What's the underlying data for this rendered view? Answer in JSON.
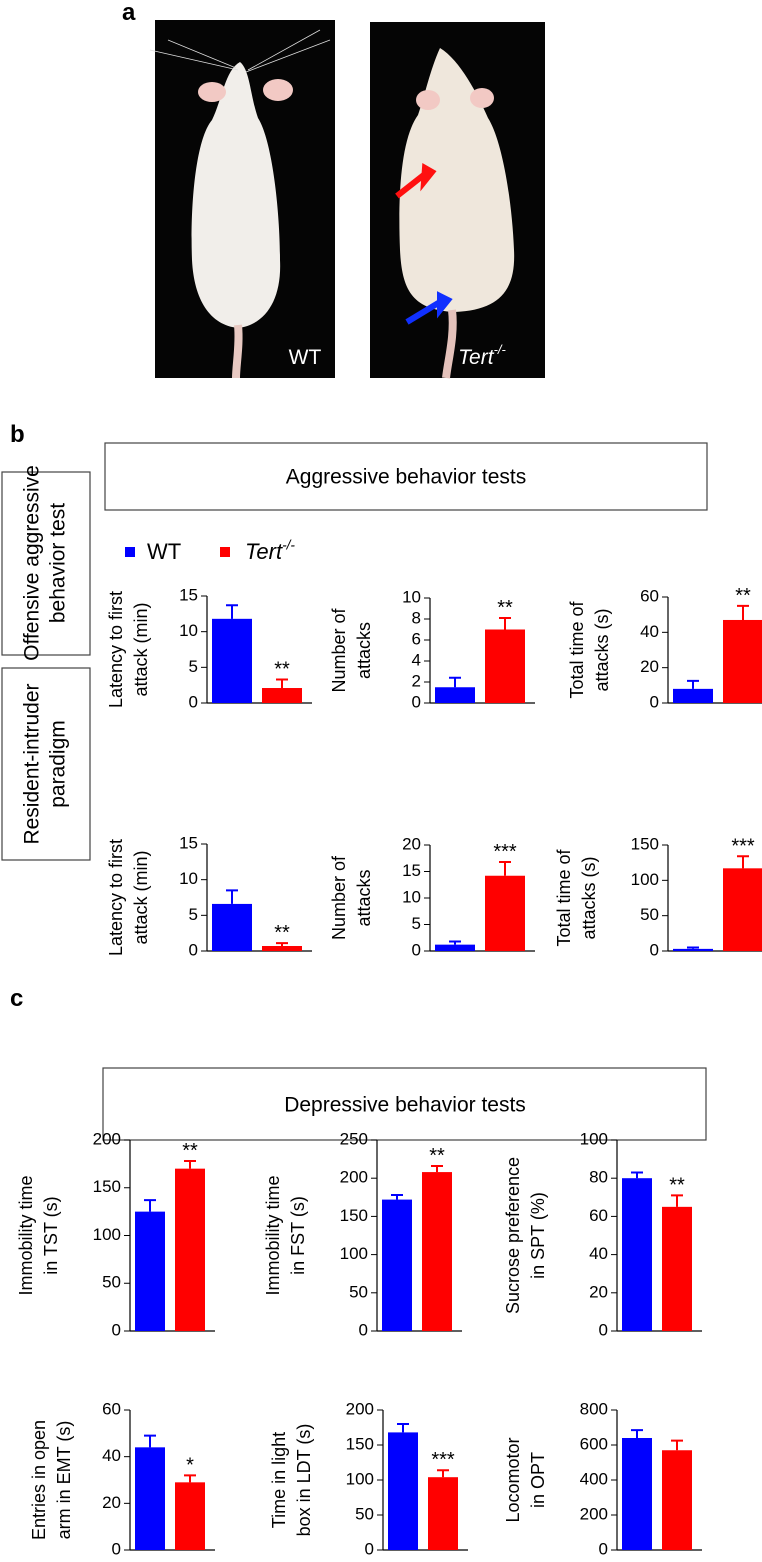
{
  "panel_labels": [
    "a",
    "b",
    "c"
  ],
  "photo_labels": [
    "WT",
    "Tert-/-"
  ],
  "section_titles": [
    "Aggressive behavior tests",
    "Depressive behavior tests"
  ],
  "row_labels": [
    [
      "Offensive aggressive",
      "behavior test"
    ],
    [
      "Resident-intruder",
      "paradigm"
    ]
  ],
  "chart_data": [
    {
      "type": "bar",
      "ylabel": [
        "Latency to first",
        "attack (min)"
      ],
      "ylim": [
        0,
        15
      ],
      "yticks": [
        0,
        5,
        10,
        15
      ],
      "series": [
        {
          "name": "WT",
          "color": "#0000ff",
          "values": [
            11.8
          ],
          "errors": [
            1.9
          ]
        },
        {
          "name": "Tert-/-",
          "color": "#ff0000",
          "values": [
            2.1
          ],
          "errors": [
            1.2
          ],
          "significance": "**"
        }
      ]
    },
    {
      "type": "bar",
      "ylabel": [
        "Number of",
        "attacks"
      ],
      "ylim": [
        0,
        10
      ],
      "yticks": [
        0,
        2,
        4,
        6,
        8,
        10
      ],
      "series": [
        {
          "name": "WT",
          "color": "#0000ff",
          "values": [
            1.5
          ],
          "errors": [
            0.9
          ]
        },
        {
          "name": "Tert-/-",
          "color": "#ff0000",
          "values": [
            7.0
          ],
          "errors": [
            1.1
          ],
          "significance": "**"
        }
      ]
    },
    {
      "type": "bar",
      "ylabel": [
        "Total time of",
        "attacks (s)"
      ],
      "ylim": [
        0,
        60
      ],
      "yticks": [
        0,
        20,
        40,
        60
      ],
      "series": [
        {
          "name": "WT",
          "color": "#0000ff",
          "values": [
            8
          ],
          "errors": [
            4.5
          ]
        },
        {
          "name": "Tert-/-",
          "color": "#ff0000",
          "values": [
            47
          ],
          "errors": [
            8
          ],
          "significance": "**"
        }
      ]
    },
    {
      "type": "bar",
      "ylabel": [
        "Latency to first",
        "attack (min)"
      ],
      "ylim": [
        0,
        15
      ],
      "yticks": [
        0,
        5,
        10,
        15
      ],
      "series": [
        {
          "name": "WT",
          "color": "#0000ff",
          "values": [
            6.6
          ],
          "errors": [
            1.9
          ]
        },
        {
          "name": "Tert-/-",
          "color": "#ff0000",
          "values": [
            0.7
          ],
          "errors": [
            0.4
          ],
          "significance": "**"
        }
      ]
    },
    {
      "type": "bar",
      "ylabel": [
        "Number of",
        "attacks"
      ],
      "ylim": [
        0,
        20
      ],
      "yticks": [
        0,
        5,
        10,
        15,
        20
      ],
      "series": [
        {
          "name": "WT",
          "color": "#0000ff",
          "values": [
            1.2
          ],
          "errors": [
            0.6
          ]
        },
        {
          "name": "Tert-/-",
          "color": "#ff0000",
          "values": [
            14.2
          ],
          "errors": [
            2.6
          ],
          "significance": "***"
        }
      ]
    },
    {
      "type": "bar",
      "ylabel": [
        "Total time of",
        "attacks (s)"
      ],
      "ylim": [
        0,
        150
      ],
      "yticks": [
        0,
        50,
        100,
        150
      ],
      "series": [
        {
          "name": "WT",
          "color": "#0000ff",
          "values": [
            3
          ],
          "errors": [
            2
          ]
        },
        {
          "name": "Tert-/-",
          "color": "#ff0000",
          "values": [
            117
          ],
          "errors": [
            17
          ],
          "significance": "***"
        }
      ]
    },
    {
      "type": "bar",
      "ylabel": [
        "Immobility time",
        "in TST (s)"
      ],
      "ylim": [
        0,
        200
      ],
      "yticks": [
        0,
        50,
        100,
        150,
        200
      ],
      "series": [
        {
          "name": "WT",
          "color": "#0000ff",
          "values": [
            125
          ],
          "errors": [
            12
          ]
        },
        {
          "name": "Tert-/-",
          "color": "#ff0000",
          "values": [
            170
          ],
          "errors": [
            8
          ],
          "significance": "**"
        }
      ]
    },
    {
      "type": "bar",
      "ylabel": [
        "Immobility time",
        "in FST (s)"
      ],
      "ylim": [
        0,
        250
      ],
      "yticks": [
        0,
        50,
        100,
        150,
        200,
        250
      ],
      "series": [
        {
          "name": "WT",
          "color": "#0000ff",
          "values": [
            172
          ],
          "errors": [
            6
          ]
        },
        {
          "name": "Tert-/-",
          "color": "#ff0000",
          "values": [
            208
          ],
          "errors": [
            8
          ],
          "significance": "**"
        }
      ]
    },
    {
      "type": "bar",
      "ylabel": [
        "Sucrose preference",
        "in SPT (%)"
      ],
      "ylim": [
        0,
        100
      ],
      "yticks": [
        0,
        20,
        40,
        60,
        80,
        100
      ],
      "series": [
        {
          "name": "WT",
          "color": "#0000ff",
          "values": [
            80
          ],
          "errors": [
            3
          ]
        },
        {
          "name": "Tert-/-",
          "color": "#ff0000",
          "values": [
            65
          ],
          "errors": [
            6
          ],
          "significance": "**"
        }
      ]
    },
    {
      "type": "bar",
      "ylabel": [
        "Entries in open",
        "arm in EMT (s)"
      ],
      "ylim": [
        0,
        60
      ],
      "yticks": [
        0,
        20,
        40,
        60
      ],
      "series": [
        {
          "name": "WT",
          "color": "#0000ff",
          "values": [
            44
          ],
          "errors": [
            5
          ]
        },
        {
          "name": "Tert-/-",
          "color": "#ff0000",
          "values": [
            29
          ],
          "errors": [
            3
          ],
          "significance": "*"
        }
      ]
    },
    {
      "type": "bar",
      "ylabel": [
        "Time in light",
        "box in LDT (s)"
      ],
      "ylim": [
        0,
        200
      ],
      "yticks": [
        0,
        50,
        100,
        150,
        200
      ],
      "series": [
        {
          "name": "WT",
          "color": "#0000ff",
          "values": [
            168
          ],
          "errors": [
            12
          ]
        },
        {
          "name": "Tert-/-",
          "color": "#ff0000",
          "values": [
            104
          ],
          "errors": [
            10
          ],
          "significance": "***"
        }
      ]
    },
    {
      "type": "bar",
      "ylabel": [
        "Locomotor",
        "in OPT"
      ],
      "ylim": [
        0,
        800
      ],
      "yticks": [
        0,
        200,
        400,
        600,
        800
      ],
      "series": [
        {
          "name": "WT",
          "color": "#0000ff",
          "values": [
            640
          ],
          "errors": [
            45
          ]
        },
        {
          "name": "Tert-/-",
          "color": "#ff0000",
          "values": [
            570
          ],
          "errors": [
            55
          ]
        }
      ]
    }
  ]
}
